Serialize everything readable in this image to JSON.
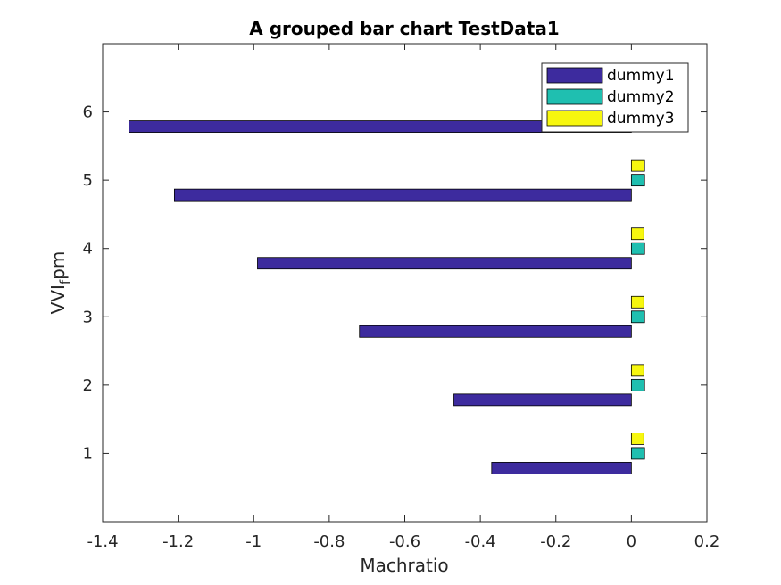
{
  "chart_data": {
    "type": "bar",
    "orientation": "horizontal",
    "title": "A grouped bar chart TestData1",
    "xlabel": "Machratio",
    "ylabel": "VVI_f pm",
    "ylabel_parts": {
      "main": "VVI",
      "sub": "f",
      "rest": "pm"
    },
    "categories": [
      1,
      2,
      3,
      4,
      5,
      6
    ],
    "series": [
      {
        "name": "dummy1",
        "color": "#3D2B9E",
        "values": [
          -0.37,
          -0.47,
          -0.72,
          -0.99,
          -1.21,
          -1.33
        ]
      },
      {
        "name": "dummy2",
        "color": "#1FBFB0",
        "values": [
          0.035,
          0.035,
          0.035,
          0.035,
          0.035,
          0.0
        ]
      },
      {
        "name": "dummy3",
        "color": "#F7F70F",
        "values": [
          0.033,
          0.033,
          0.033,
          0.033,
          0.035,
          0.0
        ]
      }
    ],
    "xlim": [
      -1.4,
      0.2
    ],
    "ylim": [
      0,
      7
    ],
    "xticks": [
      -1.4,
      -1.2,
      -1,
      -0.8,
      -0.6,
      -0.4,
      -0.2,
      0,
      0.2
    ],
    "xtick_labels": [
      "-1.4",
      "-1.2",
      "-1",
      "-0.8",
      "-0.6",
      "-0.4",
      "-0.2",
      "0",
      "0.2"
    ],
    "yticks": [
      1,
      2,
      3,
      4,
      5,
      6
    ],
    "ytick_labels": [
      "1",
      "2",
      "3",
      "4",
      "5",
      "6"
    ],
    "grid": false,
    "legend_position": "top-right"
  }
}
